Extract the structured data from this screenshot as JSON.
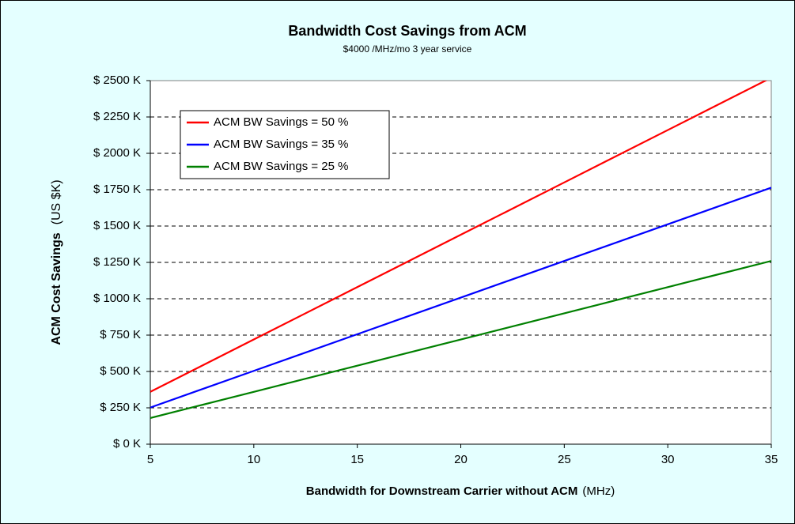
{
  "chart_data": {
    "type": "line",
    "title": "Bandwidth Cost Savings from ACM",
    "subtitle": "$4000 /MHz/mo   3 year service",
    "x_label": "Bandwidth for Downstream Carrier  without ACM",
    "x_label_unit": "(MHz)",
    "y_label": "ACM Cost Savings",
    "y_label_unit": "(US $K)",
    "x": [
      5,
      10,
      15,
      20,
      25,
      30,
      35
    ],
    "series": [
      {
        "name": "ACM BW Savings = 50 %",
        "color": "#ff0000",
        "values": [
          360,
          720,
          1080,
          1440,
          1800,
          2160,
          2520
        ]
      },
      {
        "name": "ACM BW Savings = 35 %",
        "color": "#0000ff",
        "values": [
          252,
          504,
          756,
          1008,
          1260,
          1512,
          1764
        ]
      },
      {
        "name": "ACM BW Savings = 25 %",
        "color": "#008000",
        "values": [
          180,
          360,
          540,
          720,
          900,
          1080,
          1260
        ]
      }
    ],
    "xlim": [
      5,
      35
    ],
    "xticks": [
      5,
      10,
      15,
      20,
      25,
      30,
      35
    ],
    "ylim": [
      0,
      2500
    ],
    "yticks": [
      {
        "value": 0,
        "label": "$ 0  K"
      },
      {
        "value": 250,
        "label": "$ 250  K"
      },
      {
        "value": 500,
        "label": "$ 500  K"
      },
      {
        "value": 750,
        "label": "$ 750  K"
      },
      {
        "value": 1000,
        "label": "$ 1000  K"
      },
      {
        "value": 1250,
        "label": "$ 1250  K"
      },
      {
        "value": 1500,
        "label": "$ 1500  K"
      },
      {
        "value": 1750,
        "label": "$ 1750  K"
      },
      {
        "value": 2000,
        "label": "$ 2000  K"
      },
      {
        "value": 2250,
        "label": "$ 2250  K"
      },
      {
        "value": 2500,
        "label": "$ 2500  K"
      }
    ],
    "grid": true,
    "legend": "upper-left"
  }
}
